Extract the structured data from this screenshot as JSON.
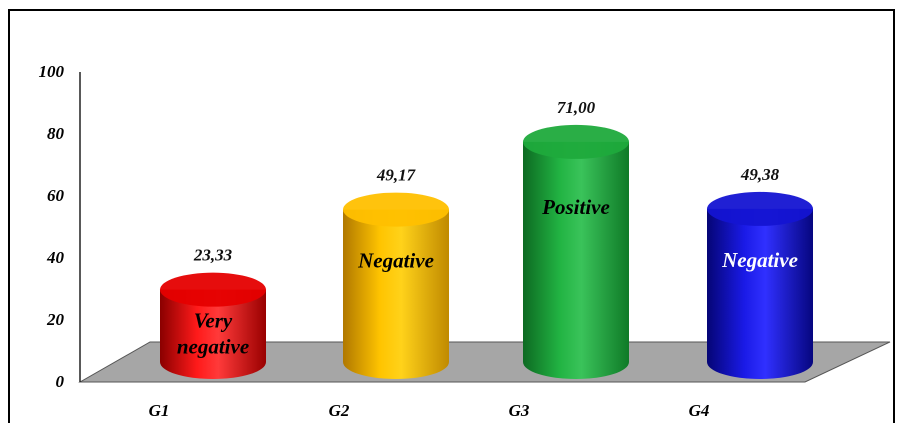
{
  "chart_data": {
    "type": "bar",
    "style": "3d-cylinder",
    "categories": [
      "G1",
      "G2",
      "G3",
      "G4"
    ],
    "values": [
      23.33,
      49.17,
      71.0,
      49.38
    ],
    "value_labels": [
      "23,33",
      "49,17",
      "71,00",
      "49,38"
    ],
    "bar_labels": [
      [
        "Very",
        "negative"
      ],
      [
        "Negative"
      ],
      [
        "Positive"
      ],
      [
        "Negative"
      ]
    ],
    "bar_label_colors": [
      "#000000",
      "#000000",
      "#000000",
      "#ffffff"
    ],
    "colors": [
      "#e50000",
      "#ffc000",
      "#1faa3c",
      "#1414d2"
    ],
    "yticks": [
      "0",
      "20",
      "40",
      "60",
      "80",
      "100"
    ],
    "ylim": [
      0,
      100
    ],
    "title": "",
    "xlabel": "",
    "ylabel": "",
    "grid": false,
    "legend": "none",
    "floor_color": "#a6a6a6"
  }
}
